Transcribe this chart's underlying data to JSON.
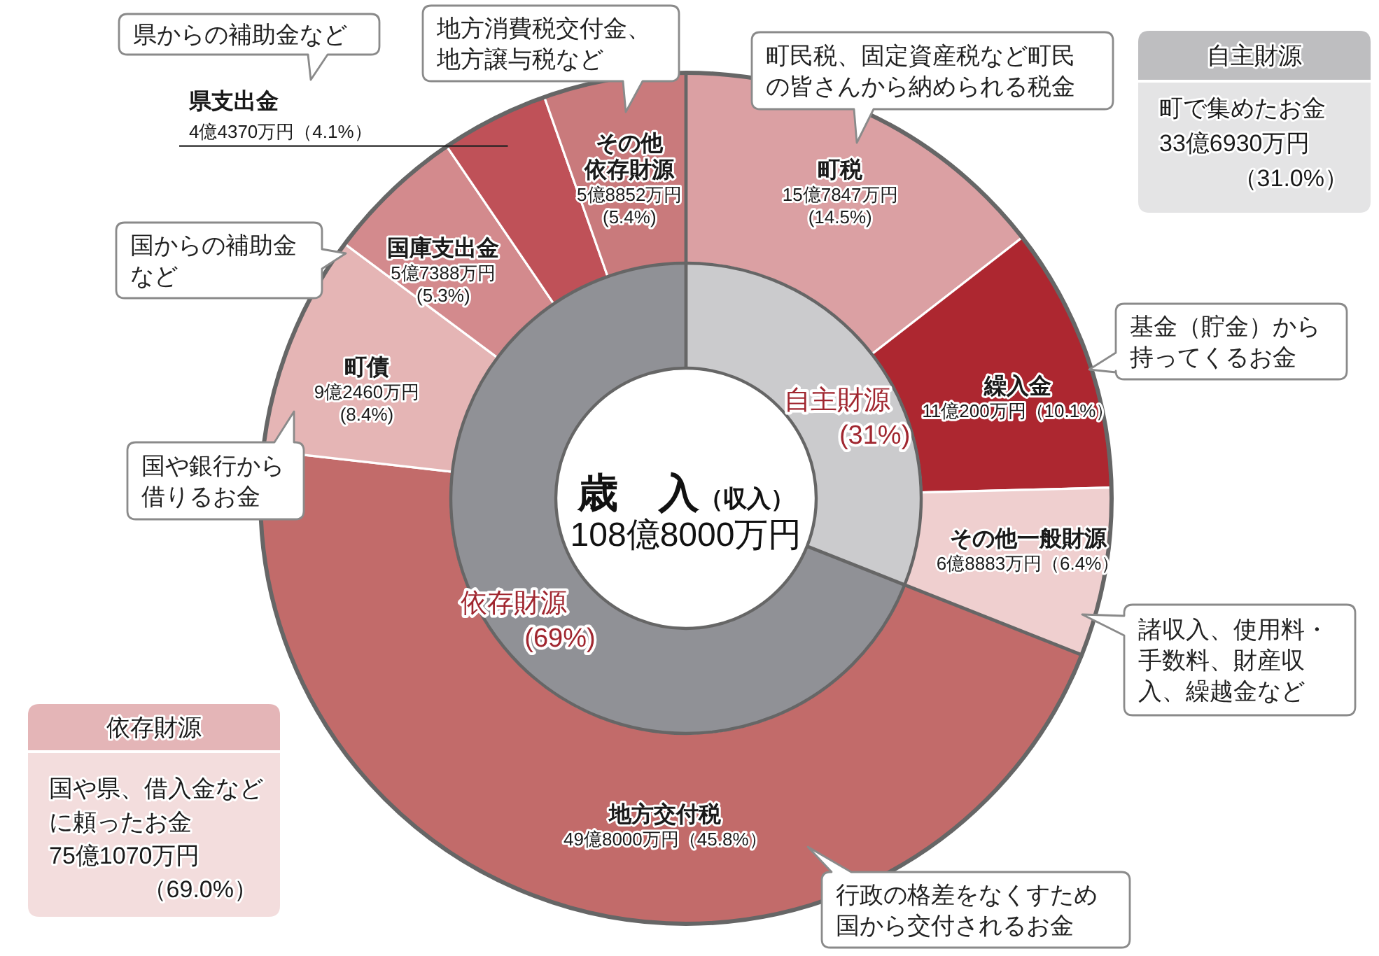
{
  "chart_data": [
    {
      "type": "donut",
      "categories": [
        "町税",
        "繰入金",
        "その他一般財源",
        "地方交付税",
        "町債",
        "国庫支出金",
        "県支出金",
        "その他依存財源"
      ],
      "values": [
        14.5,
        10.1,
        6.4,
        45.8,
        8.4,
        5.3,
        4.1,
        5.4
      ],
      "colors": [
        "#dba0a3",
        "#ad2730",
        "#efcfcf",
        "#c26b6a",
        "#e5b5b5",
        "#d38a8d",
        "#bf5158",
        "#c97a7c"
      ],
      "value_labels": [
        "15億7847万円\n(14.5%)",
        "11億200万円（10.1%）",
        "6億8883万円（6.4%）",
        "49億8000万円（45.8%）",
        "9億2460万円\n(8.4%)",
        "5億7388万円\n(5.3%)",
        "4億4370万円（4.1%）",
        "5億8852万円\n(5.4%)"
      ],
      "annotations": [
        "県からの補助金など",
        "地方消費税交付金、地方譲与税など",
        "町民税、固定資産税など町民の皆さんから納められる税金",
        "国からの補助金など",
        "基金（貯金）から持ってくるお金",
        "国や銀行から借りるお金",
        "諸収入、使用料・手数料、財産収入、繰越金など",
        "行政の格差をなくすため国から交付されるお金"
      ]
    },
    {
      "type": "donut",
      "title": "歳　入",
      "subtitle": "（収入）",
      "categories": [
        "自主財源",
        "依存財源"
      ],
      "values": [
        31,
        69
      ],
      "colors": [
        "#cbcbcd",
        "#909196"
      ],
      "value_labels": [
        "(31%)",
        "(69%)"
      ],
      "annotations": [
        "108億8000万円",
        "自主財源",
        "町で集めたお金",
        "33億6930万円",
        "（31.0%）",
        "依存財源",
        "国や県、借入金などに頼ったお金",
        "75億1070万円",
        "（69.0%）"
      ]
    }
  ]
}
